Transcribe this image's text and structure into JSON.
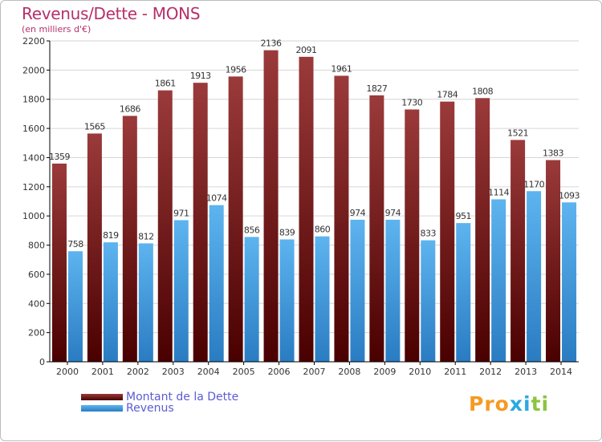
{
  "header": {
    "title": "Revenus/Dette - MONS",
    "subtitle": "(en milliers d'€)"
  },
  "logo": {
    "text": "Proxiti",
    "letter_colors": [
      "#f59a23",
      "#f59a23",
      "#f59a23",
      "#2aa9e0",
      "#2aa9e0",
      "#8bc53f",
      "#8bc53f"
    ]
  },
  "colors": {
    "debt_top": "#9b3a3a",
    "debt_bottom": "#4a0000",
    "revenue_top": "#5db4ef",
    "revenue_bottom": "#2a7cc2",
    "plot_background": "#ffffff",
    "grid": "#d6d6d6",
    "label_text": "#333333"
  },
  "chart_data": {
    "type": "bar",
    "title": "Revenus/Dette - MONS",
    "subtitle": "(en milliers d'€)",
    "categories": [
      "2000",
      "2001",
      "2002",
      "2003",
      "2004",
      "2005",
      "2006",
      "2007",
      "2008",
      "2009",
      "2010",
      "2011",
      "2012",
      "2013",
      "2014"
    ],
    "series": [
      {
        "name": "Montant de la Dette",
        "values": [
          1359,
          1565,
          1686,
          1861,
          1913,
          1956,
          2136,
          2091,
          1961,
          1827,
          1730,
          1784,
          1808,
          1521,
          1383
        ]
      },
      {
        "name": "Revenus",
        "values": [
          758,
          819,
          812,
          971,
          1074,
          856,
          839,
          860,
          974,
          974,
          833,
          951,
          1114,
          1170,
          1093
        ]
      }
    ],
    "ylim": [
      0,
      2200
    ],
    "yticks": [
      0,
      200,
      400,
      600,
      800,
      1000,
      1200,
      1400,
      1600,
      1800,
      2000,
      2200
    ],
    "grid": true,
    "data_labels": true,
    "legend": "bottom-left"
  }
}
